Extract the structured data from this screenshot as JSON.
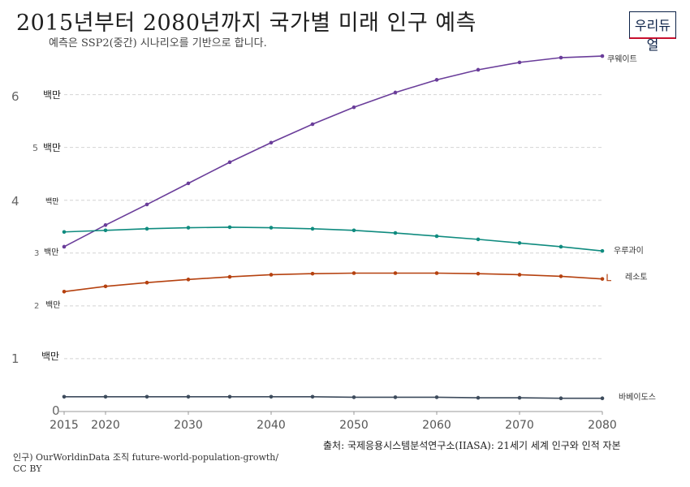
{
  "header": {
    "title": "2015년부터 2080년까지 국가별 미래 인구 예측",
    "subtitle": "예측은 SSP2(중간) 시나리오를 기반으로 합니다.",
    "logo_text": "우리듀얼"
  },
  "footer": {
    "source": "출처: 국제응용시스템분석연구소(IIASA): 21세기 세계 인구와 인적 자본",
    "note": "인구) OurWorldinData 조직 future-world-population-growth/ CC BY"
  },
  "colors": {
    "kuwait": "#6a3d9a",
    "uruguay": "#0f8b7f",
    "lesotho": "#b5410f",
    "barbados": "#3d4b5c",
    "grid": "#d4d4d4",
    "axis": "#999999"
  },
  "chart_data": {
    "type": "line",
    "title": "2015년부터 2080년까지 국가별 미래 인구 예측",
    "subtitle": "예측은 SSP2(중간) 시나리오를 기반으로 합니다.",
    "x": [
      2015,
      2020,
      2025,
      2030,
      2035,
      2040,
      2045,
      2050,
      2055,
      2060,
      2065,
      2070,
      2075,
      2080
    ],
    "x_ticks": [
      "2015",
      "2020",
      "2030",
      "2040",
      "2050",
      "2060",
      "2070",
      "2080"
    ],
    "y_ticks": [
      {
        "value": 0,
        "num": "0",
        "unit": ""
      },
      {
        "value": 1,
        "num": "1",
        "unit": "백만"
      },
      {
        "value": 2,
        "num": "2",
        "unit": "백만"
      },
      {
        "value": 3,
        "num": "3",
        "unit": "백만"
      },
      {
        "value": 4,
        "num": "4",
        "unit": "백만"
      },
      {
        "value": 5,
        "num": "5",
        "unit": "백만"
      },
      {
        "value": 6,
        "num": "6",
        "unit": "백만"
      }
    ],
    "ylim": [
      0,
      6.6
    ],
    "grid": true,
    "series": [
      {
        "name": "쿠웨이트",
        "key": "kuwait",
        "values": [
          3.12,
          3.53,
          3.92,
          4.32,
          4.72,
          5.09,
          5.44,
          5.76,
          6.04,
          6.28,
          6.47,
          6.61,
          6.7,
          6.73
        ]
      },
      {
        "name": "우루과이",
        "key": "uruguay",
        "values": [
          3.4,
          3.43,
          3.46,
          3.48,
          3.49,
          3.48,
          3.46,
          3.43,
          3.38,
          3.32,
          3.26,
          3.19,
          3.12,
          3.04
        ]
      },
      {
        "name": "레소토",
        "key": "lesotho",
        "values": [
          2.27,
          2.37,
          2.44,
          2.5,
          2.55,
          2.59,
          2.61,
          2.62,
          2.62,
          2.62,
          2.61,
          2.59,
          2.56,
          2.51
        ]
      },
      {
        "name": "바베이도스",
        "key": "barbados",
        "values": [
          0.28,
          0.28,
          0.28,
          0.28,
          0.28,
          0.28,
          0.28,
          0.27,
          0.27,
          0.27,
          0.26,
          0.26,
          0.25,
          0.25
        ]
      }
    ]
  }
}
